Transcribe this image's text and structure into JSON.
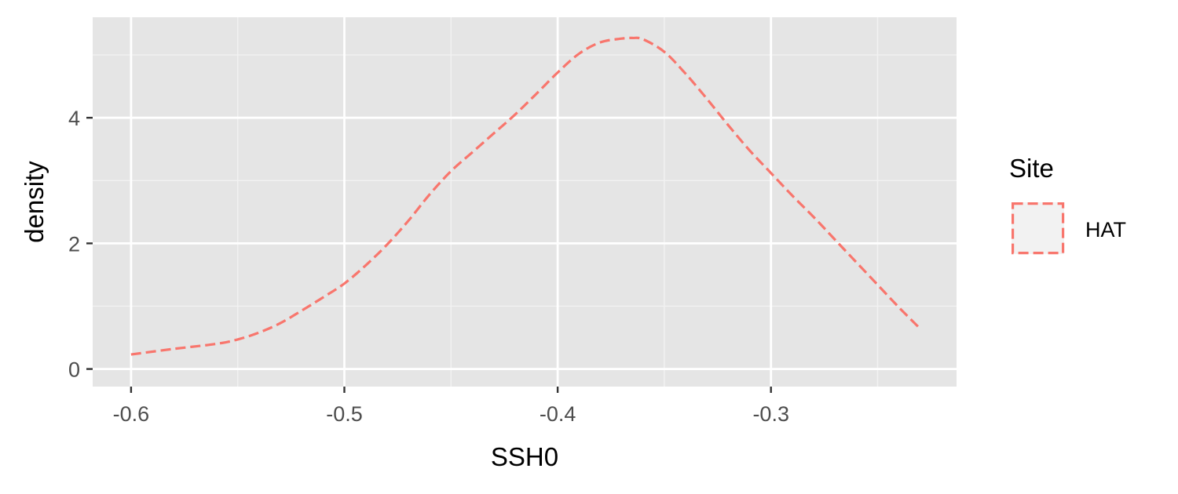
{
  "chart_data": {
    "type": "line",
    "subtype": "density",
    "xlabel": "SSH0",
    "ylabel": "density",
    "xlim": [
      -0.618,
      -0.213
    ],
    "ylim": [
      -0.28,
      5.6
    ],
    "x_ticks": [
      -0.6,
      -0.5,
      -0.4,
      -0.3
    ],
    "x_tick_labels": [
      "-0.6",
      "-0.5",
      "-0.4",
      "-0.3"
    ],
    "y_ticks": [
      0,
      2,
      4
    ],
    "y_tick_labels": [
      "0",
      "2",
      "4"
    ],
    "grid": true,
    "legend": {
      "title": "Site",
      "placement": "right",
      "entries": [
        {
          "label": "HAT",
          "color": "#F8766D",
          "linetype": "dashed"
        }
      ]
    },
    "series": [
      {
        "name": "HAT",
        "color": "#F8766D",
        "linetype": "dashed",
        "x": [
          -0.6,
          -0.58,
          -0.56,
          -0.55,
          -0.54,
          -0.53,
          -0.52,
          -0.51,
          -0.5,
          -0.49,
          -0.48,
          -0.47,
          -0.46,
          -0.45,
          -0.44,
          -0.43,
          -0.42,
          -0.41,
          -0.4,
          -0.39,
          -0.38,
          -0.37,
          -0.365,
          -0.36,
          -0.35,
          -0.34,
          -0.33,
          -0.32,
          -0.31,
          -0.3,
          -0.29,
          -0.28,
          -0.27,
          -0.26,
          -0.25,
          -0.24,
          -0.23
        ],
        "y": [
          0.23,
          0.32,
          0.4,
          0.47,
          0.58,
          0.73,
          0.93,
          1.14,
          1.36,
          1.65,
          1.98,
          2.36,
          2.78,
          3.15,
          3.45,
          3.75,
          4.05,
          4.38,
          4.72,
          5.02,
          5.2,
          5.26,
          5.27,
          5.25,
          5.05,
          4.7,
          4.3,
          3.88,
          3.48,
          3.12,
          2.76,
          2.42,
          2.06,
          1.7,
          1.34,
          0.98,
          0.64
        ]
      }
    ]
  },
  "colors": {
    "panel_background": "#E5E5E5",
    "grid_major": "#FFFFFF",
    "grid_minor": "#F2F2F2",
    "tick_text": "#4D4D4D",
    "series": "#F8766D",
    "legend_key_background": "#F2F2F2"
  }
}
